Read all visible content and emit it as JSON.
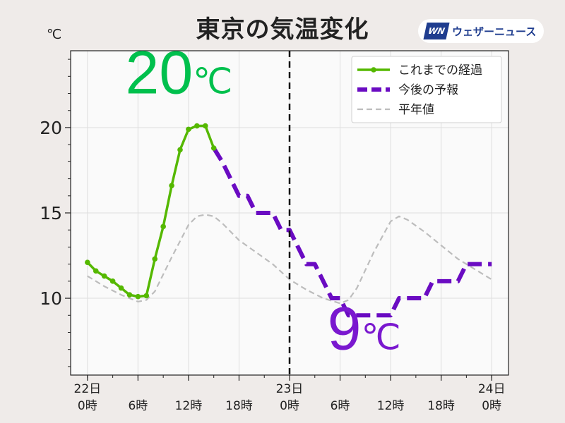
{
  "brand": {
    "mark": "WN",
    "name": "ウェザーニュース"
  },
  "chart_data": {
    "type": "line",
    "title": "東京の気温変化",
    "unit": "℃",
    "ylim": [
      5.5,
      24.5
    ],
    "xlim": [
      -2,
      50
    ],
    "grid": true,
    "legend_position": "top-right",
    "yticks": [
      10,
      15,
      20
    ],
    "xticks": [
      {
        "x": 0,
        "line1": "22日",
        "line2": "0時"
      },
      {
        "x": 6,
        "line1": "",
        "line2": "6時"
      },
      {
        "x": 12,
        "line1": "",
        "line2": "12時"
      },
      {
        "x": 18,
        "line1": "",
        "line2": "18時"
      },
      {
        "x": 24,
        "line1": "23日",
        "line2": "0時"
      },
      {
        "x": 30,
        "line1": "",
        "line2": "6時"
      },
      {
        "x": 36,
        "line1": "",
        "line2": "12時"
      },
      {
        "x": 42,
        "line1": "",
        "line2": "18時"
      },
      {
        "x": 48,
        "line1": "24日",
        "line2": "0時"
      }
    ],
    "now_x": 24,
    "series": [
      {
        "name": "これまでの経過",
        "color": "#55b800",
        "style": "solid-markers",
        "x": [
          0,
          1,
          2,
          3,
          4,
          5,
          6,
          7,
          8,
          9,
          10,
          11,
          12,
          13,
          14,
          15
        ],
        "y": [
          12.1,
          11.6,
          11.3,
          11.0,
          10.6,
          10.2,
          10.1,
          10.15,
          12.3,
          14.2,
          16.6,
          18.7,
          19.9,
          20.1,
          20.1,
          18.8
        ]
      },
      {
        "name": "今後の予報",
        "color": "#6a0bc2",
        "style": "dashed",
        "step": true,
        "x": [
          15,
          16,
          17,
          18,
          19,
          20,
          21,
          22,
          23,
          24,
          25,
          26,
          27,
          28,
          29,
          30,
          31,
          32,
          33,
          34,
          35,
          36,
          37,
          38,
          39,
          40,
          41,
          42,
          43,
          44,
          45,
          46,
          47,
          48
        ],
        "y": [
          18.8,
          18.0,
          17.0,
          16.0,
          16.0,
          15.0,
          15.0,
          15.0,
          14.0,
          14.0,
          13.0,
          12.0,
          12.0,
          11.0,
          10.0,
          10.0,
          9.0,
          9.0,
          9.0,
          9.0,
          9.0,
          9.0,
          10.0,
          10.0,
          10.0,
          10.0,
          11.0,
          11.0,
          11.0,
          11.0,
          12.0,
          12.0,
          12.0,
          12.0
        ]
      },
      {
        "name": "平年値",
        "color": "#bdbdbd",
        "style": "dashed-thin",
        "x": [
          0,
          2,
          4,
          6,
          7,
          8,
          10,
          12,
          13,
          14,
          15,
          16,
          18,
          20,
          22,
          24,
          26,
          28,
          30,
          31,
          32,
          34,
          36,
          37,
          38,
          40,
          42,
          44,
          46,
          48
        ],
        "y": [
          11.3,
          10.7,
          10.2,
          9.8,
          9.9,
          10.4,
          12.4,
          14.3,
          14.8,
          14.9,
          14.8,
          14.4,
          13.4,
          12.7,
          12.0,
          11.1,
          10.5,
          10.0,
          9.7,
          9.9,
          10.6,
          12.7,
          14.5,
          14.8,
          14.6,
          13.9,
          13.1,
          12.3,
          11.7,
          11.1
        ]
      }
    ],
    "annotations": [
      {
        "text": "20",
        "unit": "℃",
        "color": "#00c04d",
        "x": 4.5,
        "y": 22.0
      },
      {
        "text": "9",
        "unit": "℃",
        "color": "#7a18cf",
        "x": 28.5,
        "y": 7.0
      }
    ]
  }
}
